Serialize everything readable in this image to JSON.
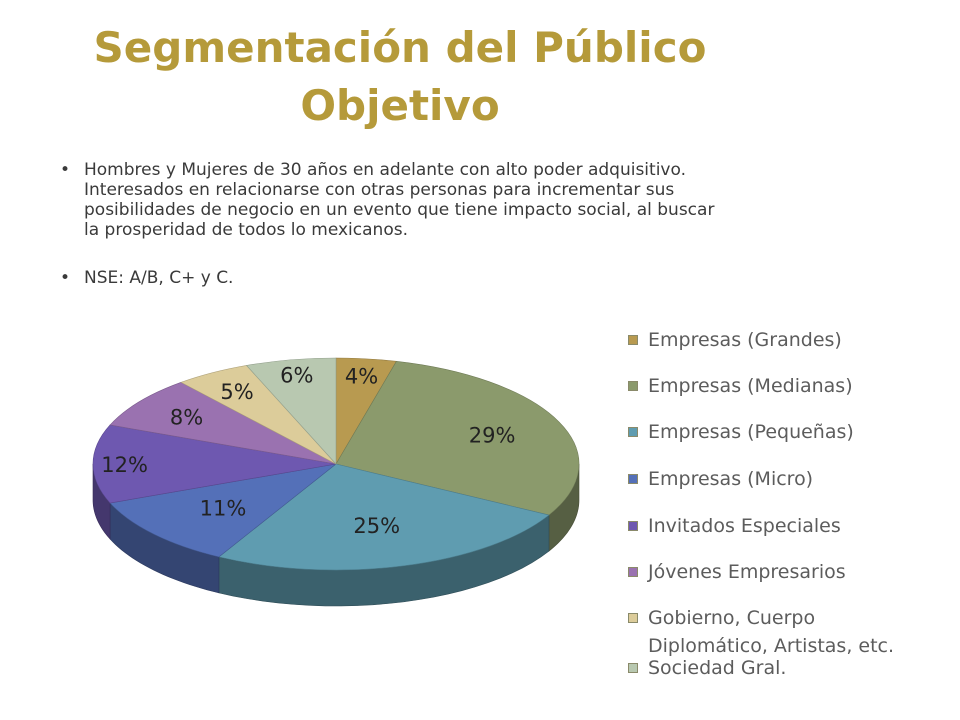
{
  "slide": {
    "title_line1": "Segmentación del Público",
    "title_line2": "Objetivo",
    "bullet_char": "•",
    "bullets": [
      "Hombres y Mujeres de 30 años en adelante con alto poder adquisitivo.  Interesados en relacionarse con otras personas para incrementar sus posibilidades de negocio en un evento que tiene impacto social, al buscar la prosperidad de todos lo mexicanos.",
      "NSE: A/B, C+ y C."
    ]
  },
  "colors": {
    "title": "#b59a3a",
    "body_text": "#3a3a3a"
  },
  "chart_data": {
    "type": "pie",
    "title": "",
    "categories": [
      "Empresas (Grandes)",
      "Empresas (Medianas)",
      "Empresas (Pequeñas)",
      "Empresas (Micro)",
      "Invitados Especiales",
      "Jóvenes Empresarios",
      "Gobierno, Cuerpo Diplomático, Artistas, etc.",
      "Sociedad Gral."
    ],
    "values": [
      4,
      29,
      25,
      11,
      12,
      8,
      5,
      6
    ],
    "labels": [
      "4%",
      "29%",
      "25%",
      "11%",
      "12%",
      "8%",
      "5%",
      "6%"
    ],
    "colors": [
      "#b89a50",
      "#8b9a6c",
      "#5f9cb0",
      "#5470b8",
      "#6e58b0",
      "#9a72b0",
      "#dccc9a",
      "#b8c8b0"
    ],
    "legend_position": "right",
    "style": "3d"
  }
}
